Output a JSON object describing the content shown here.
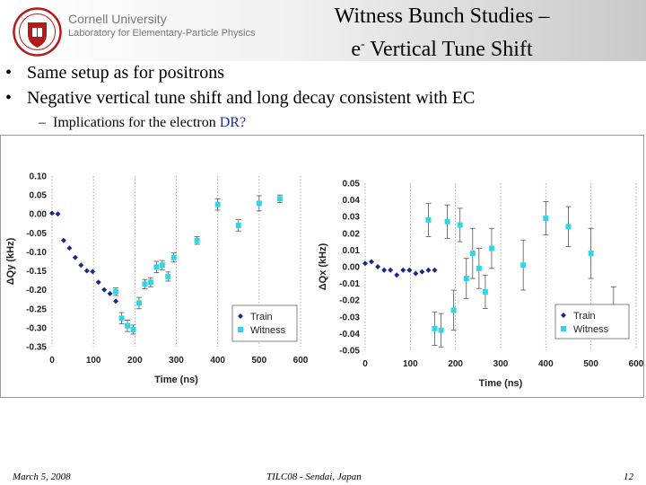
{
  "header": {
    "org_name": "Cornell University",
    "org_sub": "Laboratory for Elementary-Particle Physics",
    "title_line1": "Witness Bunch Studies –",
    "title_line2_prefix": "e",
    "title_line2_sup": "-",
    "title_line2_suffix": " Vertical Tune Shift",
    "logo_icon": "cornell-seal-icon"
  },
  "bullets": [
    "Same setup as for positrons",
    "Negative vertical tune shift and long decay consistent with EC"
  ],
  "bullet_symbol": "•",
  "subbullet": {
    "dash": "–",
    "text_before": "Implications for the electron ",
    "accent": "DR?"
  },
  "footer": {
    "date": "March 5, 2008",
    "venue": "TILC08 - Sendai, Japan",
    "page": "12"
  },
  "colors": {
    "train": "#1a2a8c",
    "witness": "#2fd6e6",
    "grid": "#9a9a9a"
  },
  "chart_data": [
    {
      "type": "scatter",
      "xlabel": "Time (ns)",
      "ylabel": "ΔQy (kHz)",
      "xlim": [
        0,
        600
      ],
      "ylim": [
        -0.35,
        0.1
      ],
      "xticks": [
        "0",
        "100",
        "200",
        "300",
        "400",
        "500",
        "600"
      ],
      "yticks": [
        "0.10",
        "0.05",
        "0.00",
        "-0.05",
        "-0.10",
        "-0.15",
        "-0.20",
        "-0.25",
        "-0.30",
        "-0.35"
      ],
      "grid": true,
      "legend_position": "bottom-right",
      "series": [
        {
          "name": "Train",
          "marker": "diamond",
          "points": [
            [
              0,
              0.002
            ],
            [
              14,
              0.0
            ],
            [
              28,
              -0.07
            ],
            [
              42,
              -0.09
            ],
            [
              56,
              -0.115
            ],
            [
              70,
              -0.135
            ],
            [
              84,
              -0.15
            ],
            [
              98,
              -0.152
            ],
            [
              112,
              -0.18
            ],
            [
              126,
              -0.2
            ],
            [
              140,
              -0.21
            ],
            [
              154,
              -0.23
            ]
          ]
        },
        {
          "name": "Witness",
          "marker": "square",
          "points": [
            [
              154,
              -0.205
            ],
            [
              168,
              -0.275
            ],
            [
              182,
              -0.295
            ],
            [
              196,
              -0.305
            ],
            [
              210,
              -0.235
            ],
            [
              224,
              -0.185
            ],
            [
              238,
              -0.18
            ],
            [
              252,
              -0.14
            ],
            [
              266,
              -0.135
            ],
            [
              280,
              -0.165
            ],
            [
              294,
              -0.115
            ],
            [
              350,
              -0.07
            ],
            [
              400,
              0.025
            ],
            [
              450,
              -0.03
            ],
            [
              500,
              0.028
            ],
            [
              550,
              0.04
            ]
          ],
          "err": [
            0.01,
            0.015,
            0.015,
            0.012,
            0.015,
            0.012,
            0.012,
            0.015,
            0.012,
            0.012,
            0.012,
            0.01,
            0.015,
            0.015,
            0.02,
            0.01
          ]
        }
      ]
    },
    {
      "type": "scatter",
      "xlabel": "Time (ns)",
      "ylabel": "ΔQx (kHz)",
      "xlim": [
        0,
        600
      ],
      "ylim": [
        -0.05,
        0.05
      ],
      "xticks": [
        "0",
        "100",
        "200",
        "300",
        "400",
        "500",
        "600"
      ],
      "yticks": [
        "0.05",
        "0.04",
        "0.03",
        "0.02",
        "0.01",
        "0.00",
        "-0.01",
        "-0.02",
        "-0.03",
        "-0.04",
        "-0.05"
      ],
      "grid": true,
      "legend_position": "bottom-right",
      "series": [
        {
          "name": "Train",
          "marker": "diamond",
          "points": [
            [
              0,
              0.002
            ],
            [
              14,
              0.003
            ],
            [
              28,
              0.0
            ],
            [
              42,
              -0.002
            ],
            [
              56,
              -0.002
            ],
            [
              70,
              -0.005
            ],
            [
              84,
              -0.002
            ],
            [
              98,
              -0.002
            ],
            [
              112,
              -0.004
            ],
            [
              126,
              -0.003
            ],
            [
              140,
              -0.002
            ],
            [
              154,
              -0.002
            ]
          ]
        },
        {
          "name": "Witness",
          "marker": "square",
          "points": [
            [
              140,
              0.028
            ],
            [
              154,
              -0.037
            ],
            [
              168,
              -0.038
            ],
            [
              182,
              0.027
            ],
            [
              196,
              -0.026
            ],
            [
              210,
              0.025
            ],
            [
              224,
              -0.007
            ],
            [
              238,
              0.008
            ],
            [
              252,
              -0.001
            ],
            [
              266,
              -0.015
            ],
            [
              280,
              0.011
            ],
            [
              350,
              0.001
            ],
            [
              400,
              0.029
            ],
            [
              450,
              0.024
            ],
            [
              500,
              0.008
            ],
            [
              550,
              -0.024
            ]
          ],
          "err": [
            0.01,
            0.01,
            0.01,
            0.01,
            0.012,
            0.01,
            0.012,
            0.015,
            0.012,
            0.01,
            0.012,
            0.015,
            0.01,
            0.012,
            0.015,
            0.012
          ]
        }
      ]
    }
  ]
}
